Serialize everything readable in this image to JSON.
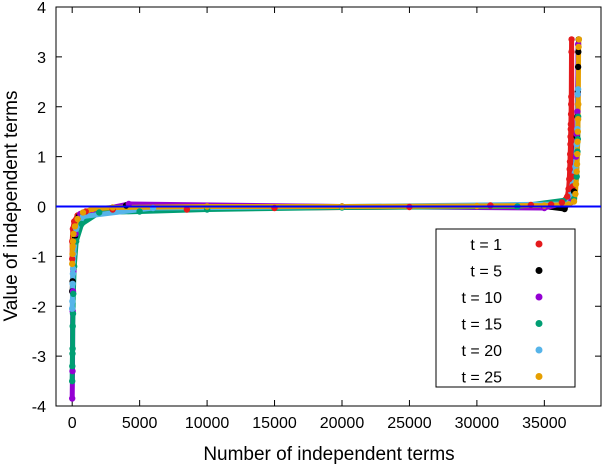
{
  "chart_data": {
    "type": "scatter",
    "xlabel": "Number of independent terms",
    "ylabel": "Value of independent terms",
    "xlim": [
      -1200,
      39200
    ],
    "ylim": [
      -4,
      4
    ],
    "x_ticks": [
      0,
      5000,
      10000,
      15000,
      20000,
      25000,
      30000,
      35000
    ],
    "y_ticks": [
      -4,
      -3,
      -2,
      -1,
      0,
      1,
      2,
      3,
      4
    ],
    "grid": false,
    "legend_position": "bottom-right",
    "reference_line": {
      "y": 0,
      "color": "#0000ff"
    },
    "series": [
      {
        "name": "t = 1",
        "color": "#e41a1c",
        "points": [
          [
            0,
            -1.05
          ],
          [
            0,
            -0.7
          ],
          [
            50,
            -0.45
          ],
          [
            150,
            -0.3
          ],
          [
            400,
            -0.18
          ],
          [
            1000,
            -0.1
          ],
          [
            3000,
            -0.06
          ],
          [
            8500,
            -0.06
          ],
          [
            15000,
            -0.03
          ],
          [
            25000,
            -0.01
          ],
          [
            31000,
            0.02
          ],
          [
            34000,
            0.03
          ],
          [
            35500,
            0.04
          ],
          [
            36300,
            0.08
          ],
          [
            36700,
            0.2
          ],
          [
            36800,
            0.35
          ],
          [
            36850,
            0.55
          ],
          [
            36880,
            0.75
          ],
          [
            36900,
            0.9
          ],
          [
            36920,
            1.05
          ],
          [
            36940,
            1.25
          ],
          [
            36950,
            1.4
          ],
          [
            36960,
            1.55
          ],
          [
            36970,
            1.65
          ],
          [
            36980,
            1.85
          ],
          [
            36990,
            2.05
          ],
          [
            37000,
            2.2
          ],
          [
            37010,
            3.1
          ],
          [
            37020,
            3.35
          ],
          [
            37050,
            0.6
          ],
          [
            37100,
            0.4
          ]
        ]
      },
      {
        "name": "t = 5",
        "color": "#000000",
        "points": [
          [
            0,
            -1.7
          ],
          [
            30,
            -1.5
          ],
          [
            80,
            -1.25
          ],
          [
            200,
            -0.6
          ],
          [
            500,
            -0.2
          ],
          [
            4000,
            0.02
          ],
          [
            20000,
            0.0
          ],
          [
            35000,
            0.0
          ],
          [
            36500,
            -0.05
          ],
          [
            37200,
            0.3
          ],
          [
            37400,
            1.4
          ],
          [
            37450,
            1.8
          ],
          [
            37480,
            2.3
          ],
          [
            37500,
            2.8
          ],
          [
            37520,
            3.1
          ],
          [
            37550,
            3.35
          ]
        ]
      },
      {
        "name": "t = 10",
        "color": "#9400d3",
        "points": [
          [
            0,
            -3.85
          ],
          [
            20,
            -3.3
          ],
          [
            40,
            -2.1
          ],
          [
            60,
            -1.7
          ],
          [
            90,
            -1.3
          ],
          [
            250,
            -0.55
          ],
          [
            600,
            -0.15
          ],
          [
            4200,
            0.05
          ],
          [
            20000,
            0.0
          ],
          [
            35000,
            -0.03
          ],
          [
            37000,
            0.1
          ],
          [
            37350,
            1.0
          ],
          [
            37400,
            1.45
          ],
          [
            37450,
            1.9
          ],
          [
            37480,
            2.25
          ],
          [
            37500,
            3.25
          ]
        ]
      },
      {
        "name": "t = 15",
        "color": "#009e73",
        "points": [
          [
            0,
            -3.5
          ],
          [
            10,
            -3.2
          ],
          [
            20,
            -2.95
          ],
          [
            30,
            -2.85
          ],
          [
            40,
            -2.4
          ],
          [
            60,
            -2.15
          ],
          [
            80,
            -1.75
          ],
          [
            150,
            -1.2
          ],
          [
            300,
            -0.7
          ],
          [
            700,
            -0.35
          ],
          [
            2000,
            -0.12
          ],
          [
            5000,
            -0.1
          ],
          [
            10000,
            -0.06
          ],
          [
            20000,
            -0.02
          ],
          [
            33000,
            0.0
          ],
          [
            37200,
            0.15
          ],
          [
            37400,
            0.6
          ],
          [
            37450,
            1.1
          ],
          [
            37480,
            1.35
          ],
          [
            37500,
            1.8
          ]
        ]
      },
      {
        "name": "t = 20",
        "color": "#56b4e9",
        "points": [
          [
            0,
            -2.05
          ],
          [
            15,
            -1.9
          ],
          [
            30,
            -1.55
          ],
          [
            50,
            -1.35
          ],
          [
            70,
            -1.25
          ],
          [
            120,
            -0.95
          ],
          [
            300,
            -0.45
          ],
          [
            800,
            -0.2
          ],
          [
            6000,
            -0.03
          ],
          [
            20000,
            0.0
          ],
          [
            36800,
            0.05
          ],
          [
            37300,
            0.8
          ],
          [
            37400,
            1.25
          ],
          [
            37450,
            1.55
          ],
          [
            37480,
            2.25
          ],
          [
            37500,
            2.35
          ]
        ]
      },
      {
        "name": "t = 25",
        "color": "#e69f00",
        "points": [
          [
            0,
            -1.15
          ],
          [
            20,
            -0.95
          ],
          [
            40,
            -0.8
          ],
          [
            60,
            -0.7
          ],
          [
            100,
            -0.55
          ],
          [
            200,
            -0.4
          ],
          [
            400,
            -0.25
          ],
          [
            800,
            -0.12
          ],
          [
            1500,
            -0.05
          ],
          [
            3000,
            -0.02
          ],
          [
            10000,
            0.0
          ],
          [
            20000,
            0.0
          ],
          [
            30000,
            0.01
          ],
          [
            35000,
            0.02
          ],
          [
            36800,
            0.04
          ],
          [
            37200,
            0.1
          ],
          [
            37300,
            0.25
          ],
          [
            37350,
            0.45
          ],
          [
            37400,
            0.7
          ],
          [
            37420,
            0.85
          ],
          [
            37440,
            1.05
          ],
          [
            37460,
            1.3
          ],
          [
            37480,
            1.5
          ],
          [
            37500,
            1.75
          ],
          [
            37520,
            2.05
          ],
          [
            37540,
            3.2
          ],
          [
            37560,
            3.35
          ]
        ]
      }
    ]
  }
}
